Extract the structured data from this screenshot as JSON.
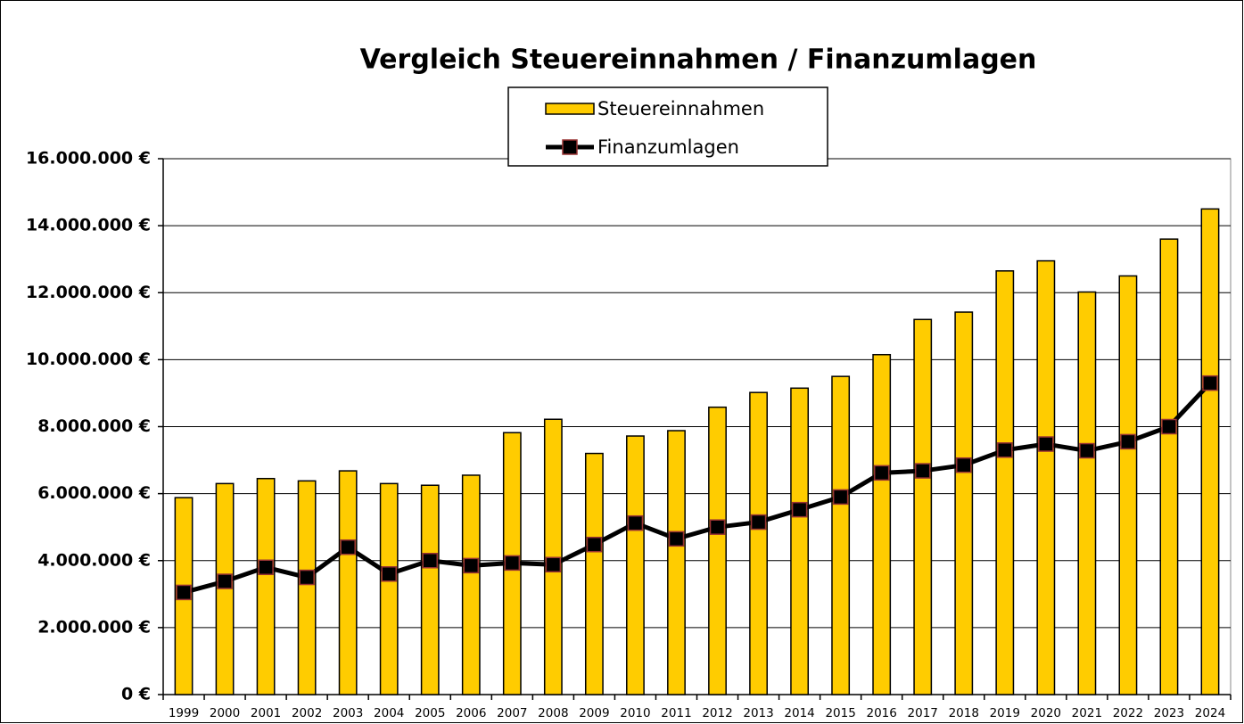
{
  "chart_data": {
    "type": "bar_line",
    "title": "Vergleich Steuereinnahmen / Finanzumlagen",
    "categories": [
      "1999",
      "2000",
      "2001",
      "2002",
      "2003",
      "2004",
      "2005",
      "2006",
      "2007",
      "2008",
      "2009",
      "2010",
      "2011",
      "2012",
      "2013",
      "2014",
      "2015",
      "2016",
      "2017",
      "2018",
      "2019",
      "2020",
      "2021",
      "2022",
      "2023",
      "2024"
    ],
    "series": [
      {
        "name": "Steuereinnahmen",
        "type": "bar",
        "color": "#ffcc00",
        "values": [
          5880000,
          6300000,
          6450000,
          6380000,
          6680000,
          6300000,
          6250000,
          6550000,
          7820000,
          8220000,
          7200000,
          7720000,
          7880000,
          8580000,
          9020000,
          9150000,
          9500000,
          10150000,
          11200000,
          11420000,
          12650000,
          12950000,
          12020000,
          12500000,
          13600000,
          14500000
        ]
      },
      {
        "name": "Finanzumlagen",
        "type": "line",
        "color": "#000000",
        "marker_edge": "#993333",
        "values": [
          3050000,
          3380000,
          3800000,
          3500000,
          4400000,
          3600000,
          4000000,
          3850000,
          3930000,
          3880000,
          4480000,
          5120000,
          4650000,
          5000000,
          5150000,
          5520000,
          5900000,
          6620000,
          6680000,
          6850000,
          7300000,
          7480000,
          7280000,
          7550000,
          8000000,
          9300000
        ]
      }
    ],
    "ylim": [
      0,
      16000000
    ],
    "yticks": [
      {
        "value": 0,
        "label": "0 €"
      },
      {
        "value": 2000000,
        "label": "2.000.000 €"
      },
      {
        "value": 4000000,
        "label": "4.000.000 €"
      },
      {
        "value": 6000000,
        "label": "6.000.000 €"
      },
      {
        "value": 8000000,
        "label": "8.000.000 €"
      },
      {
        "value": 10000000,
        "label": "10.000.000 €"
      },
      {
        "value": 12000000,
        "label": "12.000.000 €"
      },
      {
        "value": 14000000,
        "label": "14.000.000 €"
      },
      {
        "value": 16000000,
        "label": "16.000.000 €"
      }
    ],
    "grid": true,
    "legend": "top"
  }
}
